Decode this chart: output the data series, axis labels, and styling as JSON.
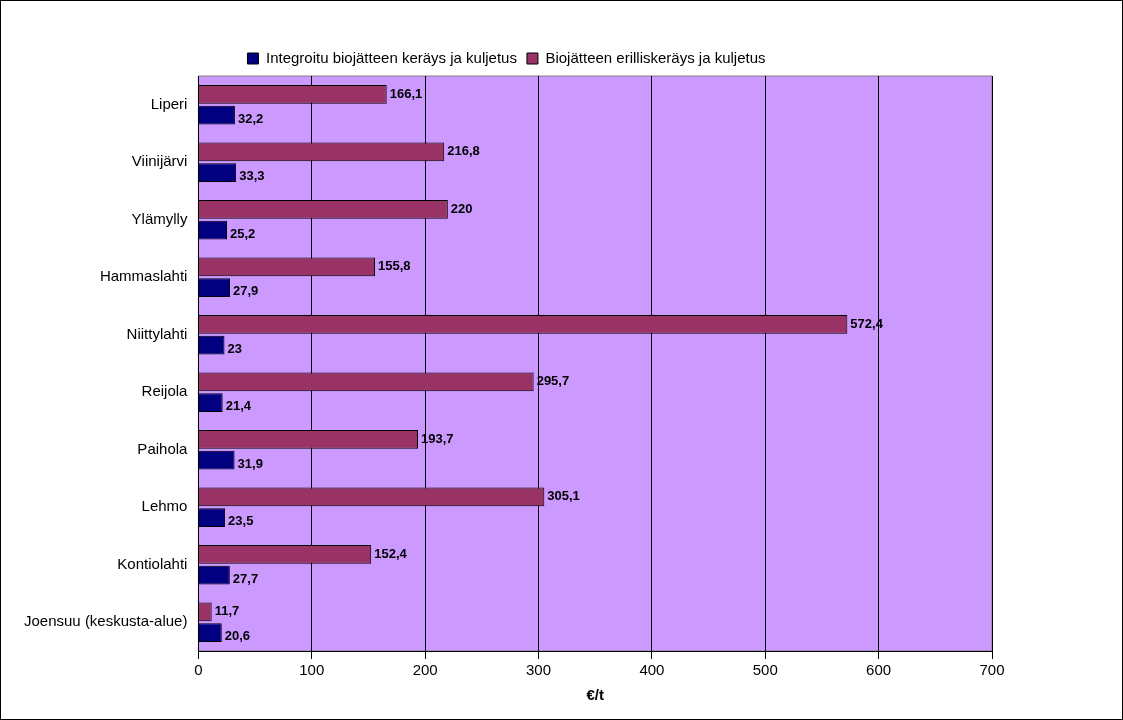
{
  "chart_data": {
    "type": "bar",
    "orientation": "horizontal",
    "xlabel": "€/t",
    "categories": [
      "Liperi",
      "Viinijärvi",
      "Ylämylly",
      "Hammaslahti",
      "Niittylahti",
      "Reijola",
      "Paihola",
      "Lehmo",
      "Kontiolahti",
      "Joensuu (keskusta-alue)"
    ],
    "series": [
      {
        "name": "Integroitu biojätteen keräys ja kuljetus",
        "color": "#000080",
        "values": [
          32.2,
          33.3,
          25.2,
          27.9,
          23,
          21.4,
          31.9,
          23.5,
          27.7,
          20.6
        ],
        "value_labels": [
          "32,2",
          "33,3",
          "25,2",
          "27,9",
          "23",
          "21,4",
          "31,9",
          "23,5",
          "27,7",
          "20,6"
        ]
      },
      {
        "name": "Biojätteen erilliskeräys ja kuljetus",
        "color": "#993366",
        "values": [
          166.1,
          216.8,
          220,
          155.8,
          572.4,
          295.7,
          193.7,
          305.1,
          152.4,
          11.7
        ],
        "value_labels": [
          "166,1",
          "216,8",
          "220",
          "155,8",
          "572,4",
          "295,7",
          "193,7",
          "305,1",
          "152,4",
          "11,7"
        ]
      }
    ],
    "xlim": [
      0,
      700
    ],
    "xticks": [
      0,
      100,
      200,
      300,
      400,
      500,
      600,
      700
    ],
    "grid": "x",
    "legend": "top"
  }
}
